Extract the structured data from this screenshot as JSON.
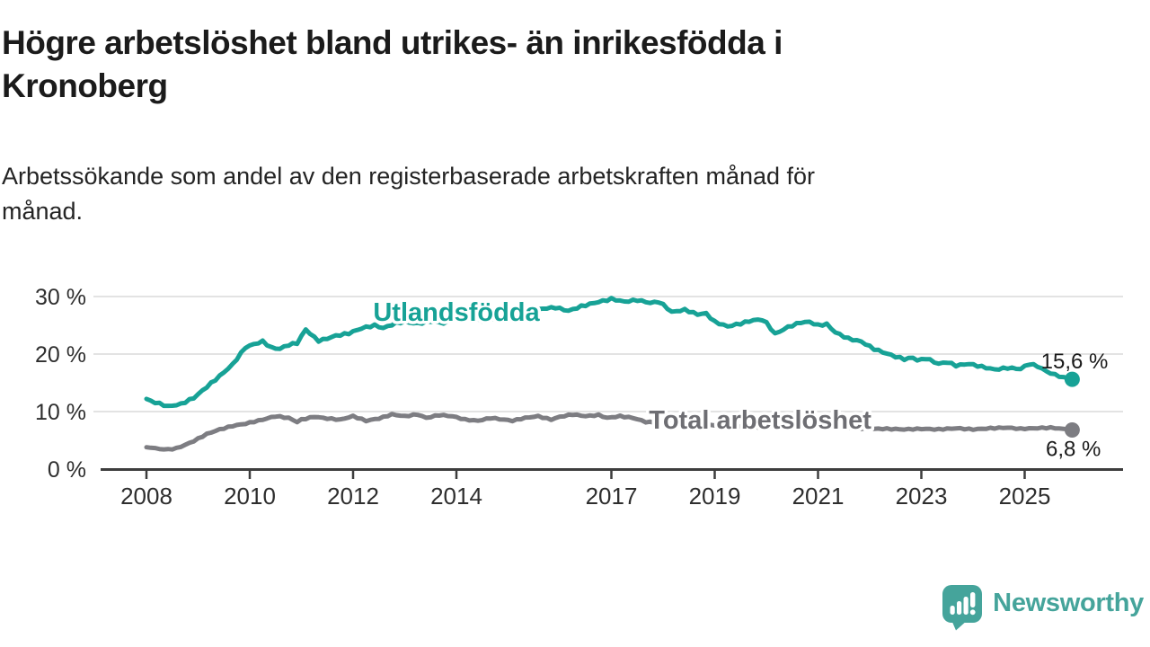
{
  "header": {
    "title_lines": [
      "Högre arbetslöshet bland utrikes- än inrikesfödda i",
      "Kronoberg"
    ],
    "subtitle_lines": [
      "Arbetssökande som andel av den registerbaserade arbetskraften månad för",
      "månad."
    ]
  },
  "chart_data": {
    "type": "line",
    "title": "Högre arbetslöshet bland utrikes- än inrikesfödda i Kronoberg",
    "subtitle": "Arbetssökande som andel av den registerbaserade arbetskraften månad för månad.",
    "unit": "%",
    "grid": "horizontal",
    "legend_position": "inline-labels",
    "xlim": [
      2007.1,
      2026.9
    ],
    "ylim": [
      0,
      31
    ],
    "x_ticks": [
      2008,
      2010,
      2012,
      2014,
      2017,
      2019,
      2021,
      2023,
      2025
    ],
    "y_ticks": [
      0,
      10,
      20,
      30
    ],
    "y_tick_suffix": " %",
    "axis_color": "#3d3d3d",
    "grid_color": "#dadada",
    "tick_label_color": "#2e2e2e",
    "series": [
      {
        "name": "Utlandsfödda",
        "color": "#17a296",
        "label_color": "#17a296",
        "end_label": "15,6 %",
        "end_value": 15.6,
        "label_at": [
          2014.0,
          25.8
        ],
        "end_label_offset": [
          40,
          -12
        ],
        "jitter": 0.16,
        "phase": 0,
        "points": [
          [
            2008.0,
            12.2
          ],
          [
            2008.17,
            11.6
          ],
          [
            2008.42,
            10.9
          ],
          [
            2008.67,
            11.3
          ],
          [
            2008.92,
            12.4
          ],
          [
            2009.17,
            14.3
          ],
          [
            2009.42,
            16.2
          ],
          [
            2009.67,
            18.2
          ],
          [
            2009.92,
            21.2
          ],
          [
            2010.08,
            21.7
          ],
          [
            2010.25,
            22.2
          ],
          [
            2010.42,
            21.1
          ],
          [
            2010.58,
            20.9
          ],
          [
            2010.75,
            21.6
          ],
          [
            2010.92,
            21.9
          ],
          [
            2011.08,
            24.3
          ],
          [
            2011.25,
            22.9
          ],
          [
            2011.33,
            22.3
          ],
          [
            2011.5,
            22.7
          ],
          [
            2011.67,
            23.2
          ],
          [
            2011.92,
            23.6
          ],
          [
            2012.17,
            24.5
          ],
          [
            2012.42,
            25.0
          ],
          [
            2012.58,
            24.5
          ],
          [
            2012.83,
            25.4
          ],
          [
            2013.0,
            25.6
          ],
          [
            2013.25,
            25.3
          ],
          [
            2013.5,
            25.7
          ],
          [
            2013.75,
            25.4
          ],
          [
            2014.0,
            26.0
          ],
          [
            2014.25,
            26.3
          ],
          [
            2014.5,
            25.8
          ],
          [
            2014.75,
            26.2
          ],
          [
            2015.0,
            26.6
          ],
          [
            2015.33,
            27.3
          ],
          [
            2015.67,
            27.9
          ],
          [
            2015.92,
            28.1
          ],
          [
            2016.17,
            27.5
          ],
          [
            2016.42,
            28.3
          ],
          [
            2016.67,
            28.9
          ],
          [
            2016.92,
            29.4
          ],
          [
            2017.0,
            29.6
          ],
          [
            2017.25,
            29.1
          ],
          [
            2017.5,
            29.4
          ],
          [
            2017.75,
            28.9
          ],
          [
            2017.92,
            29.1
          ],
          [
            2018.08,
            28.0
          ],
          [
            2018.17,
            27.3
          ],
          [
            2018.42,
            27.7
          ],
          [
            2018.67,
            26.9
          ],
          [
            2018.83,
            27.1
          ],
          [
            2019.0,
            25.6
          ],
          [
            2019.25,
            24.8
          ],
          [
            2019.5,
            25.3
          ],
          [
            2019.75,
            25.9
          ],
          [
            2019.95,
            26.0
          ],
          [
            2020.17,
            23.5
          ],
          [
            2020.42,
            24.7
          ],
          [
            2020.67,
            25.5
          ],
          [
            2020.83,
            25.6
          ],
          [
            2021.0,
            25.0
          ],
          [
            2021.17,
            25.2
          ],
          [
            2021.33,
            23.8
          ],
          [
            2021.58,
            22.7
          ],
          [
            2021.83,
            22.2
          ],
          [
            2022.08,
            20.9
          ],
          [
            2022.42,
            19.8
          ],
          [
            2022.67,
            19.1
          ],
          [
            2022.83,
            19.4
          ],
          [
            2022.95,
            18.8
          ],
          [
            2023.08,
            19.3
          ],
          [
            2023.33,
            18.3
          ],
          [
            2023.5,
            18.6
          ],
          [
            2023.67,
            18.0
          ],
          [
            2023.92,
            18.3
          ],
          [
            2024.17,
            17.8
          ],
          [
            2024.42,
            17.3
          ],
          [
            2024.67,
            17.6
          ],
          [
            2024.92,
            17.4
          ],
          [
            2025.08,
            18.3
          ],
          [
            2025.25,
            17.9
          ],
          [
            2025.42,
            17.0
          ],
          [
            2025.58,
            16.4
          ],
          [
            2025.75,
            16.0
          ],
          [
            2025.92,
            15.6
          ]
        ]
      },
      {
        "name": "Total arbetslöshet",
        "color": "#7d7d82",
        "label_color": "#6e6e73",
        "end_label": "6,8 %",
        "end_value": 6.8,
        "label_at": [
          2019.88,
          7.03
        ],
        "end_label_offset": [
          32,
          29
        ],
        "jitter": 0.1,
        "phase": 1.7,
        "points": [
          [
            2008.0,
            3.8
          ],
          [
            2008.25,
            3.5
          ],
          [
            2008.42,
            3.4
          ],
          [
            2008.58,
            3.6
          ],
          [
            2008.75,
            4.2
          ],
          [
            2008.92,
            4.9
          ],
          [
            2009.17,
            6.1
          ],
          [
            2009.42,
            6.9
          ],
          [
            2009.67,
            7.5
          ],
          [
            2009.92,
            7.9
          ],
          [
            2010.25,
            8.6
          ],
          [
            2010.5,
            9.2
          ],
          [
            2010.75,
            8.9
          ],
          [
            2010.92,
            8.2
          ],
          [
            2011.0,
            8.6
          ],
          [
            2011.25,
            9.1
          ],
          [
            2011.5,
            8.8
          ],
          [
            2011.75,
            8.6
          ],
          [
            2012.0,
            9.2
          ],
          [
            2012.25,
            8.4
          ],
          [
            2012.5,
            8.8
          ],
          [
            2012.75,
            9.5
          ],
          [
            2013.0,
            9.2
          ],
          [
            2013.25,
            9.5
          ],
          [
            2013.42,
            8.9
          ],
          [
            2013.67,
            9.4
          ],
          [
            2013.92,
            9.2
          ],
          [
            2014.17,
            8.6
          ],
          [
            2014.42,
            8.4
          ],
          [
            2014.67,
            8.9
          ],
          [
            2014.92,
            8.6
          ],
          [
            2015.08,
            8.4
          ],
          [
            2015.33,
            8.9
          ],
          [
            2015.58,
            9.2
          ],
          [
            2015.83,
            8.6
          ],
          [
            2016.0,
            9.1
          ],
          [
            2016.25,
            9.5
          ],
          [
            2016.5,
            9.2
          ],
          [
            2016.75,
            9.4
          ],
          [
            2016.92,
            8.9
          ],
          [
            2017.17,
            9.2
          ],
          [
            2017.42,
            8.9
          ],
          [
            2017.67,
            8.2
          ],
          [
            2018.0,
            8.0
          ],
          [
            2018.5,
            7.8
          ],
          [
            2019.0,
            7.6
          ],
          [
            2019.5,
            7.4
          ],
          [
            2020.0,
            7.3
          ],
          [
            2020.5,
            7.6
          ],
          [
            2021.0,
            7.4
          ],
          [
            2021.5,
            7.2
          ],
          [
            2022.0,
            7.0
          ],
          [
            2022.33,
            7.0
          ],
          [
            2022.67,
            6.9
          ],
          [
            2023.0,
            7.0
          ],
          [
            2023.33,
            6.9
          ],
          [
            2023.67,
            7.1
          ],
          [
            2024.0,
            6.9
          ],
          [
            2024.33,
            7.1
          ],
          [
            2024.67,
            7.2
          ],
          [
            2024.92,
            7.0
          ],
          [
            2025.17,
            7.1
          ],
          [
            2025.5,
            7.2
          ],
          [
            2025.75,
            7.0
          ],
          [
            2025.92,
            6.8
          ]
        ]
      }
    ]
  },
  "footer": {
    "brand": "Newsworthy",
    "brand_color": "#45a49b",
    "logo_icon": "speech-bubble-bar-chart-exclamation"
  }
}
